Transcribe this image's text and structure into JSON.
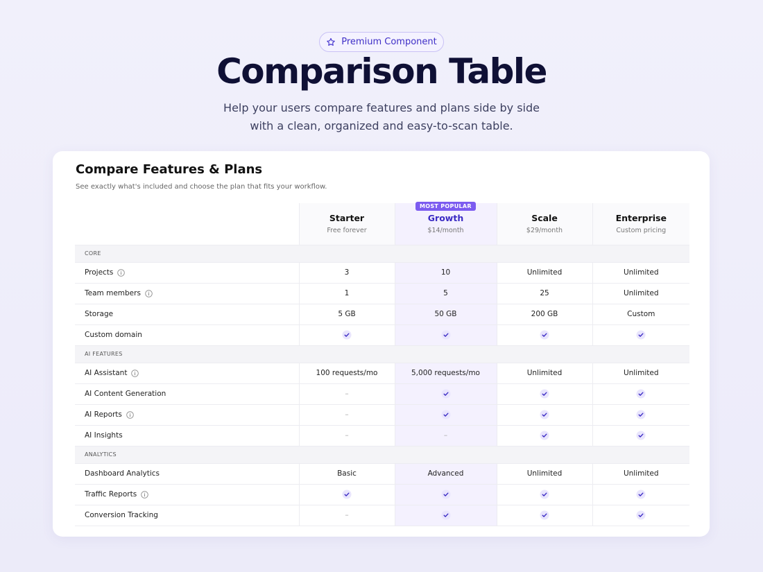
{
  "header": {
    "badge": "Premium Component",
    "title": "Comparison Table",
    "subtitle_lines": [
      "Help your users compare features and plans side by side",
      "with a clean, organized and easy-to-scan table."
    ]
  },
  "card": {
    "title": "Compare Features & Plans",
    "subtitle": "See exactly what's included and choose the plan that fits your workflow."
  },
  "table": {
    "plans": [
      {
        "name": "Starter",
        "price": "Free forever"
      },
      {
        "name": "Growth",
        "price": "$14/month",
        "badge": "MOST POPULAR",
        "highlight": true
      },
      {
        "name": "Scale",
        "price": "$29/month"
      },
      {
        "name": "Enterprise",
        "price": "Custom pricing"
      }
    ],
    "sections": [
      {
        "name": "CORE",
        "rows": [
          {
            "feature": "Projects",
            "info": true,
            "cells": [
              "3",
              "10",
              "Unlimited",
              "Unlimited"
            ]
          },
          {
            "feature": "Team members",
            "info": true,
            "cells": [
              "1",
              "5",
              "25",
              "Unlimited"
            ]
          },
          {
            "feature": "Storage",
            "info": false,
            "cells": [
              "5 GB",
              "50 GB",
              "200 GB",
              "Custom"
            ]
          },
          {
            "feature": "Custom domain",
            "info": false,
            "cells": [
              true,
              true,
              true,
              true
            ]
          }
        ]
      },
      {
        "name": "AI FEATURES",
        "rows": [
          {
            "feature": "AI Assistant",
            "info": true,
            "cells": [
              "100 requests/mo",
              "5,000 requests/mo",
              "Unlimited",
              "Unlimited"
            ]
          },
          {
            "feature": "AI Content Generation",
            "info": false,
            "cells": [
              "–",
              true,
              true,
              true
            ]
          },
          {
            "feature": "AI Reports",
            "info": true,
            "cells": [
              "–",
              true,
              true,
              true
            ]
          },
          {
            "feature": "AI Insights",
            "info": false,
            "cells": [
              "–",
              "–",
              true,
              true
            ]
          }
        ]
      },
      {
        "name": "ANALYTICS",
        "rows": [
          {
            "feature": "Dashboard Analytics",
            "info": false,
            "cells": [
              "Basic",
              "Advanced",
              "Unlimited",
              "Unlimited"
            ]
          },
          {
            "feature": "Traffic Reports",
            "info": true,
            "cells": [
              true,
              true,
              true,
              true
            ]
          },
          {
            "feature": "Conversion Tracking",
            "info": false,
            "cells": [
              "–",
              true,
              true,
              true
            ]
          }
        ]
      }
    ]
  }
}
